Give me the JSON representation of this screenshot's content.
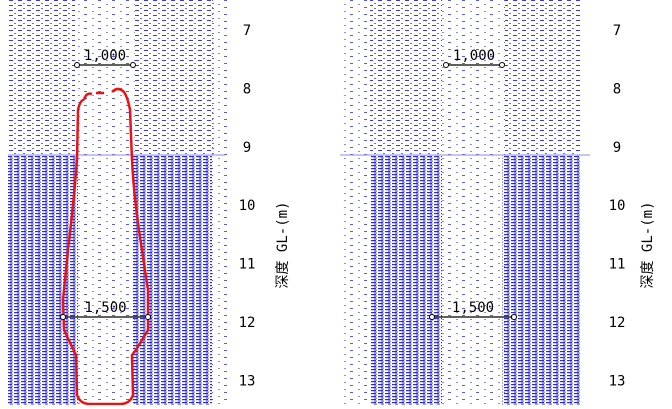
{
  "panels": [
    {
      "depth_labels": [
        7,
        8,
        9,
        10,
        11,
        12,
        13
      ],
      "axis_label": "深度 GL-(m)",
      "dimensions": [
        {
          "label": "1,000"
        },
        {
          "label": "1,500"
        }
      ]
    },
    {
      "depth_labels": [
        7,
        8,
        9,
        10,
        11,
        12,
        13
      ],
      "axis_label": "深度 GL-(m)",
      "dimensions": [
        {
          "label": "1,000"
        },
        {
          "label": "1,500"
        }
      ]
    }
  ]
}
